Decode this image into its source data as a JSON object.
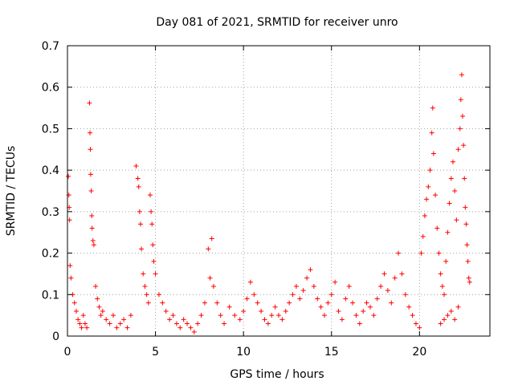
{
  "chart_data": {
    "type": "scatter",
    "title": "Day 081 of 2021, SRMTID for receiver unro",
    "xlabel": "GPS time / hours",
    "ylabel": "SRMTID / TECUs",
    "xlim": [
      0,
      24
    ],
    "ylim": [
      0,
      0.7
    ],
    "xticks": [
      "0",
      "5",
      "10",
      "15",
      "20"
    ],
    "xtick_values": [
      0,
      5,
      10,
      15,
      20
    ],
    "yticks": [
      "0",
      "0.1",
      "0.2",
      "0.3",
      "0.4",
      "0.5",
      "0.6",
      "0.7"
    ],
    "ytick_values": [
      0,
      0.1,
      0.2,
      0.3,
      0.4,
      0.5,
      0.6,
      0.7
    ],
    "grid": true,
    "marker": "+",
    "color": "#ff0000",
    "points": [
      [
        0.05,
        0.385
      ],
      [
        0.08,
        0.34
      ],
      [
        0.1,
        0.31
      ],
      [
        0.12,
        0.28
      ],
      [
        0.15,
        0.17
      ],
      [
        0.2,
        0.14
      ],
      [
        0.3,
        0.1
      ],
      [
        0.4,
        0.08
      ],
      [
        0.5,
        0.06
      ],
      [
        0.6,
        0.04
      ],
      [
        0.7,
        0.03
      ],
      [
        0.8,
        0.02
      ],
      [
        0.9,
        0.05
      ],
      [
        1.0,
        0.03
      ],
      [
        1.1,
        0.02
      ],
      [
        1.25,
        0.562
      ],
      [
        1.28,
        0.49
      ],
      [
        1.3,
        0.45
      ],
      [
        1.32,
        0.39
      ],
      [
        1.35,
        0.35
      ],
      [
        1.38,
        0.29
      ],
      [
        1.4,
        0.26
      ],
      [
        1.45,
        0.23
      ],
      [
        1.5,
        0.22
      ],
      [
        1.6,
        0.12
      ],
      [
        1.7,
        0.09
      ],
      [
        1.8,
        0.07
      ],
      [
        1.9,
        0.05
      ],
      [
        2.0,
        0.06
      ],
      [
        2.2,
        0.04
      ],
      [
        2.4,
        0.03
      ],
      [
        2.6,
        0.05
      ],
      [
        2.8,
        0.02
      ],
      [
        3.0,
        0.03
      ],
      [
        3.2,
        0.04
      ],
      [
        3.4,
        0.02
      ],
      [
        3.6,
        0.05
      ],
      [
        3.9,
        0.41
      ],
      [
        4.0,
        0.38
      ],
      [
        4.05,
        0.36
      ],
      [
        4.1,
        0.3
      ],
      [
        4.15,
        0.27
      ],
      [
        4.2,
        0.21
      ],
      [
        4.3,
        0.15
      ],
      [
        4.4,
        0.12
      ],
      [
        4.5,
        0.1
      ],
      [
        4.6,
        0.08
      ],
      [
        4.7,
        0.34
      ],
      [
        4.75,
        0.3
      ],
      [
        4.8,
        0.27
      ],
      [
        4.85,
        0.22
      ],
      [
        4.9,
        0.18
      ],
      [
        5.0,
        0.15
      ],
      [
        5.2,
        0.1
      ],
      [
        5.4,
        0.08
      ],
      [
        5.6,
        0.06
      ],
      [
        5.8,
        0.04
      ],
      [
        6.0,
        0.05
      ],
      [
        6.2,
        0.03
      ],
      [
        6.4,
        0.02
      ],
      [
        6.6,
        0.04
      ],
      [
        6.8,
        0.03
      ],
      [
        7.0,
        0.02
      ],
      [
        7.2,
        0.01
      ],
      [
        7.4,
        0.03
      ],
      [
        7.6,
        0.05
      ],
      [
        7.8,
        0.08
      ],
      [
        8.0,
        0.21
      ],
      [
        8.2,
        0.235
      ],
      [
        8.1,
        0.14
      ],
      [
        8.3,
        0.12
      ],
      [
        8.5,
        0.08
      ],
      [
        8.7,
        0.05
      ],
      [
        8.9,
        0.03
      ],
      [
        9.2,
        0.07
      ],
      [
        9.5,
        0.05
      ],
      [
        9.8,
        0.04
      ],
      [
        10.0,
        0.06
      ],
      [
        10.2,
        0.09
      ],
      [
        10.4,
        0.13
      ],
      [
        10.6,
        0.1
      ],
      [
        10.8,
        0.08
      ],
      [
        11.0,
        0.06
      ],
      [
        11.2,
        0.04
      ],
      [
        11.4,
        0.03
      ],
      [
        11.6,
        0.05
      ],
      [
        11.8,
        0.07
      ],
      [
        12.0,
        0.05
      ],
      [
        12.2,
        0.04
      ],
      [
        12.4,
        0.06
      ],
      [
        12.6,
        0.08
      ],
      [
        12.8,
        0.1
      ],
      [
        13.0,
        0.12
      ],
      [
        13.2,
        0.09
      ],
      [
        13.4,
        0.11
      ],
      [
        13.6,
        0.14
      ],
      [
        13.8,
        0.16
      ],
      [
        14.0,
        0.12
      ],
      [
        14.2,
        0.09
      ],
      [
        14.4,
        0.07
      ],
      [
        14.6,
        0.05
      ],
      [
        14.8,
        0.08
      ],
      [
        15.0,
        0.1
      ],
      [
        15.2,
        0.13
      ],
      [
        15.4,
        0.06
      ],
      [
        15.6,
        0.04
      ],
      [
        15.8,
        0.09
      ],
      [
        16.0,
        0.12
      ],
      [
        16.2,
        0.08
      ],
      [
        16.4,
        0.05
      ],
      [
        16.6,
        0.03
      ],
      [
        16.8,
        0.06
      ],
      [
        17.0,
        0.08
      ],
      [
        17.2,
        0.07
      ],
      [
        17.4,
        0.05
      ],
      [
        17.6,
        0.09
      ],
      [
        17.8,
        0.12
      ],
      [
        18.0,
        0.15
      ],
      [
        18.2,
        0.11
      ],
      [
        18.4,
        0.08
      ],
      [
        18.6,
        0.14
      ],
      [
        18.8,
        0.2
      ],
      [
        19.0,
        0.15
      ],
      [
        19.2,
        0.1
      ],
      [
        19.4,
        0.07
      ],
      [
        19.6,
        0.05
      ],
      [
        19.8,
        0.03
      ],
      [
        20.0,
        0.02
      ],
      [
        20.1,
        0.2
      ],
      [
        20.2,
        0.24
      ],
      [
        20.3,
        0.29
      ],
      [
        20.4,
        0.33
      ],
      [
        20.5,
        0.36
      ],
      [
        20.6,
        0.4
      ],
      [
        20.7,
        0.49
      ],
      [
        20.75,
        0.55
      ],
      [
        20.8,
        0.44
      ],
      [
        20.9,
        0.34
      ],
      [
        21.0,
        0.26
      ],
      [
        21.1,
        0.2
      ],
      [
        21.2,
        0.15
      ],
      [
        21.3,
        0.12
      ],
      [
        21.4,
        0.1
      ],
      [
        21.5,
        0.18
      ],
      [
        21.6,
        0.25
      ],
      [
        21.7,
        0.32
      ],
      [
        21.8,
        0.38
      ],
      [
        21.9,
        0.42
      ],
      [
        22.0,
        0.35
      ],
      [
        22.1,
        0.28
      ],
      [
        22.2,
        0.45
      ],
      [
        22.3,
        0.5
      ],
      [
        22.35,
        0.57
      ],
      [
        22.4,
        0.63
      ],
      [
        22.45,
        0.53
      ],
      [
        22.5,
        0.46
      ],
      [
        22.55,
        0.38
      ],
      [
        22.6,
        0.31
      ],
      [
        22.65,
        0.27
      ],
      [
        22.7,
        0.22
      ],
      [
        22.75,
        0.18
      ],
      [
        22.8,
        0.14
      ],
      [
        22.85,
        0.13
      ],
      [
        22.2,
        0.07
      ],
      [
        22.0,
        0.04
      ],
      [
        21.8,
        0.06
      ],
      [
        21.6,
        0.05
      ],
      [
        21.4,
        0.04
      ],
      [
        21.2,
        0.03
      ]
    ]
  }
}
